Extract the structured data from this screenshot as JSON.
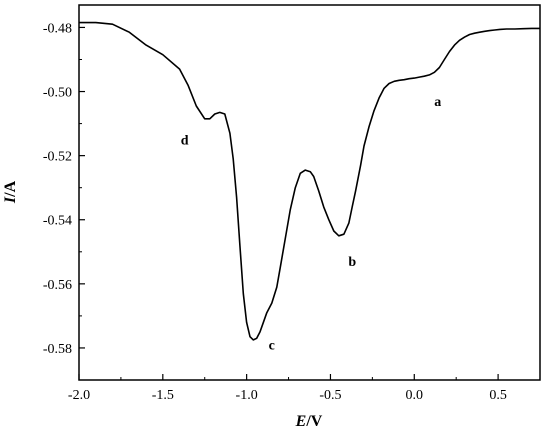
{
  "chart_data": {
    "type": "line",
    "xlabel": {
      "italic": "E",
      "rest": "/V"
    },
    "ylabel": {
      "italic": "I",
      "rest": "/A"
    },
    "xlim": [
      -2.0,
      0.75
    ],
    "ylim": [
      -0.59,
      -0.473
    ],
    "x_ticks": [
      -2.0,
      -1.5,
      -1.0,
      -0.5,
      0.0,
      0.5
    ],
    "x_tick_labels": [
      "-2.0",
      "-1.5",
      "-1.0",
      "-0.5",
      "0.0",
      "0.5"
    ],
    "y_ticks": [
      -0.48,
      -0.5,
      -0.52,
      -0.54,
      -0.56,
      -0.58
    ],
    "y_tick_labels": [
      "-0.48",
      "-0.50",
      "-0.52",
      "-0.54",
      "-0.56",
      "-0.58"
    ],
    "grid": false,
    "series": [
      {
        "color": "#000000",
        "x": [
          -2.0,
          -1.9,
          -1.8,
          -1.7,
          -1.6,
          -1.5,
          -1.4,
          -1.35,
          -1.3,
          -1.25,
          -1.22,
          -1.19,
          -1.16,
          -1.13,
          -1.1,
          -1.08,
          -1.06,
          -1.04,
          -1.02,
          -1.0,
          -0.98,
          -0.96,
          -0.94,
          -0.92,
          -0.9,
          -0.88,
          -0.85,
          -0.82,
          -0.8,
          -0.77,
          -0.74,
          -0.71,
          -0.68,
          -0.65,
          -0.62,
          -0.6,
          -0.57,
          -0.54,
          -0.51,
          -0.48,
          -0.45,
          -0.42,
          -0.39,
          -0.37,
          -0.35,
          -0.32,
          -0.3,
          -0.27,
          -0.24,
          -0.21,
          -0.18,
          -0.15,
          -0.12,
          -0.09,
          -0.06,
          -0.03,
          0.0,
          0.03,
          0.06,
          0.09,
          0.12,
          0.15,
          0.18,
          0.21,
          0.24,
          0.27,
          0.3,
          0.33,
          0.36,
          0.39,
          0.42,
          0.45,
          0.48,
          0.51,
          0.55,
          0.6,
          0.65,
          0.7,
          0.75
        ],
        "y": [
          -0.4785,
          -0.4785,
          -0.479,
          -0.4815,
          -0.4855,
          -0.4885,
          -0.493,
          -0.498,
          -0.5045,
          -0.5085,
          -0.5085,
          -0.507,
          -0.5065,
          -0.507,
          -0.513,
          -0.521,
          -0.533,
          -0.548,
          -0.563,
          -0.572,
          -0.5765,
          -0.5775,
          -0.577,
          -0.575,
          -0.572,
          -0.569,
          -0.566,
          -0.561,
          -0.555,
          -0.546,
          -0.537,
          -0.53,
          -0.5255,
          -0.5245,
          -0.525,
          -0.5265,
          -0.531,
          -0.536,
          -0.54,
          -0.5435,
          -0.545,
          -0.5445,
          -0.541,
          -0.536,
          -0.531,
          -0.523,
          -0.517,
          -0.511,
          -0.506,
          -0.502,
          -0.499,
          -0.4975,
          -0.4968,
          -0.4965,
          -0.4963,
          -0.496,
          -0.4958,
          -0.4955,
          -0.4952,
          -0.4948,
          -0.494,
          -0.4925,
          -0.49,
          -0.4875,
          -0.4855,
          -0.484,
          -0.483,
          -0.4822,
          -0.4818,
          -0.4815,
          -0.4812,
          -0.481,
          -0.4808,
          -0.4806,
          -0.4805,
          -0.4805,
          -0.4804,
          -0.4803,
          -0.4803
        ]
      }
    ],
    "annotations": [
      {
        "text": "a",
        "x": 0.14,
        "y": -0.5045
      },
      {
        "text": "b",
        "x": -0.37,
        "y": -0.5545
      },
      {
        "text": "c",
        "x": -0.85,
        "y": -0.5805
      },
      {
        "text": "d",
        "x": -1.37,
        "y": -0.5165
      }
    ]
  }
}
